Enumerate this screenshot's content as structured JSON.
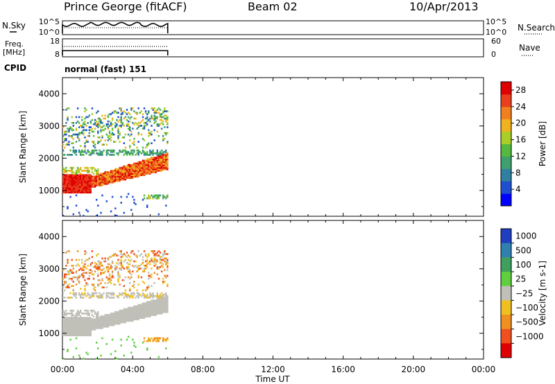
{
  "header": {
    "station": "Prince George (fitACF)",
    "beam": "Beam 02",
    "date": "10/Apr/2013"
  },
  "noise_panel": {
    "left_label": "N.Sky",
    "right_label": "N.Search",
    "left_ticks": [
      "10^5",
      "10^0"
    ],
    "right_ticks": [
      "10^5",
      "10^0"
    ]
  },
  "freq_panel": {
    "left_label_line1": "Freq.",
    "left_label_line2": "[MHz]",
    "right_label": "Nave",
    "left_ticks": [
      "18",
      "8"
    ],
    "right_ticks": [
      "60",
      "0"
    ]
  },
  "cpid": {
    "label": "CPID",
    "value": "normal (fast) 151"
  },
  "chart_data": [
    {
      "type": "heatmap",
      "parameter": "power",
      "ylabel": "Slant Range [km]",
      "ylim": [
        200,
        4500
      ],
      "yticks": [
        "1000",
        "2000",
        "3000",
        "4000"
      ],
      "xlim": [
        "00:00",
        "24:00"
      ],
      "data_extent_x": [
        "00:00",
        "06:00"
      ],
      "colorbar": {
        "label": "Power [dB]",
        "ticks": [
          "4",
          "8",
          "12",
          "16",
          "20",
          "24",
          "28"
        ],
        "range": [
          0,
          30
        ],
        "colors": [
          "#0000ff",
          "#1f4fd1",
          "#2f7fa0",
          "#3f9f6f",
          "#55b93f",
          "#a9cf27",
          "#f0b31f",
          "#f07f1f",
          "#e83f1f",
          "#e00000"
        ]
      },
      "features": [
        {
          "name": "strong near-range band",
          "x": [
            "00:00",
            "01:30"
          ],
          "range_km": [
            900,
            1500
          ],
          "value_db": 28
        },
        {
          "name": "rising F-region band",
          "x": [
            "01:30",
            "06:00"
          ],
          "range_km": [
            1100,
            2000
          ],
          "value_db": 22
        },
        {
          "name": "weak scatter patches",
          "x": [
            "00:00",
            "06:00"
          ],
          "range_km": [
            2000,
            3500
          ],
          "value_db": 10
        }
      ]
    },
    {
      "type": "heatmap",
      "parameter": "velocity",
      "ylabel": "Slant Range [km]",
      "ylim": [
        200,
        4500
      ],
      "yticks": [
        "1000",
        "2000",
        "3000",
        "4000"
      ],
      "xlim": [
        "00:00",
        "24:00"
      ],
      "data_extent_x": [
        "00:00",
        "06:00"
      ],
      "colorbar": {
        "label": "Velocity [m s-1]",
        "ticks": [
          "1000",
          "500",
          "100",
          "25",
          "-25",
          "-100",
          "-500",
          "-1000"
        ],
        "colors": [
          "#1f3fc0",
          "#2f7faf",
          "#3f9f5f",
          "#5fcf3f",
          "#c0c0b8",
          "#f0c020",
          "#f09020",
          "#f05020",
          "#e00000"
        ]
      },
      "features": [
        {
          "name": "ground scatter band",
          "x": [
            "00:00",
            "06:00"
          ],
          "range_km": [
            900,
            2200
          ],
          "value_ms": 0
        },
        {
          "name": "receding scatter patches",
          "x": [
            "00:00",
            "06:00"
          ],
          "range_km": [
            2300,
            3500
          ],
          "value_ms": -100
        }
      ]
    }
  ],
  "x_axis": {
    "ticks": [
      "00:00",
      "04:00",
      "08:00",
      "12:00",
      "16:00",
      "20:00",
      "00:00"
    ],
    "label": "Time UT"
  }
}
